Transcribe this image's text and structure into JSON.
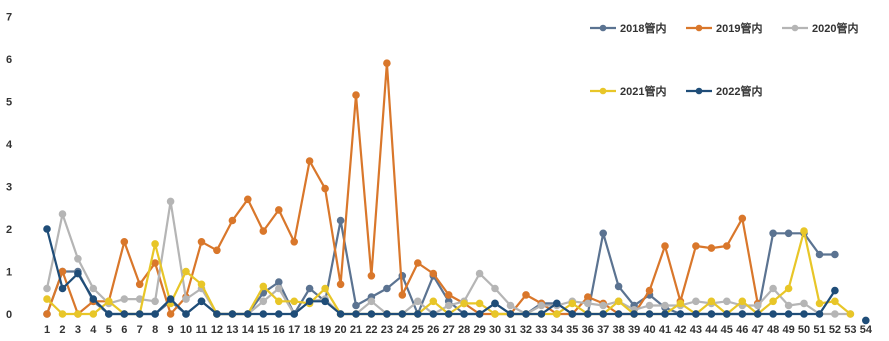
{
  "chart_data": {
    "type": "line",
    "title": "",
    "xlabel": "",
    "ylabel": "",
    "ylim": [
      0,
      7
    ],
    "y_ticks": [
      "0",
      "1",
      "2",
      "3",
      "4",
      "5",
      "6",
      "7"
    ],
    "x": [
      1,
      2,
      3,
      4,
      5,
      6,
      7,
      8,
      9,
      10,
      11,
      12,
      13,
      14,
      15,
      16,
      17,
      18,
      19,
      20,
      21,
      22,
      23,
      24,
      25,
      26,
      27,
      28,
      29,
      30,
      31,
      32,
      33,
      34,
      35,
      36,
      37,
      38,
      39,
      40,
      41,
      42,
      43,
      44,
      45,
      46,
      47,
      48,
      49,
      50,
      51,
      52,
      53,
      54
    ],
    "x_tick_labels": [
      "1",
      "2",
      "3",
      "4",
      "5",
      "6",
      "7",
      "8",
      "9",
      "10",
      "11",
      "12",
      "13",
      "14",
      "15",
      "16",
      "17",
      "18",
      "19",
      "20",
      "21",
      "22",
      "23",
      "24",
      "25",
      "26",
      "27",
      "28",
      "29",
      "30",
      "31",
      "32",
      "33",
      "34",
      "35",
      "36",
      "37",
      "38",
      "39",
      "40",
      "41",
      "42",
      "43",
      "44",
      "45",
      "46",
      "47",
      "48",
      "49",
      "50",
      "51",
      "52",
      "53",
      "54"
    ],
    "grid": false,
    "legend_position": "top-right",
    "series": [
      {
        "name": "2018管内",
        "color": "#5b7391",
        "values": [
          0,
          1,
          1,
          0.3,
          0,
          0,
          0,
          0,
          0.3,
          0,
          0.3,
          0,
          0,
          0,
          0.5,
          0.75,
          0,
          0.6,
          0.3,
          2.2,
          0.2,
          0.4,
          0.6,
          0.9,
          0,
          0.9,
          0.3,
          0,
          0,
          0.25,
          0,
          0,
          0.25,
          0.25,
          0,
          0,
          1.9,
          0.65,
          0.2,
          0.45,
          0.15,
          0,
          0,
          0,
          0,
          0,
          0,
          1.9,
          1.9,
          1.9,
          1.4,
          1.4,
          null,
          null
        ]
      },
      {
        "name": "2019管内",
        "color": "#d9772b",
        "values": [
          0,
          1,
          0,
          0.3,
          0.3,
          1.7,
          0.7,
          1.2,
          0,
          0.4,
          1.7,
          1.5,
          2.2,
          2.7,
          1.95,
          2.45,
          1.7,
          3.6,
          2.95,
          0.7,
          5.15,
          0.9,
          5.9,
          0.45,
          1.2,
          0.95,
          0.45,
          0.25,
          0,
          0,
          0,
          0.45,
          0.25,
          0,
          0,
          0.4,
          0.25,
          0,
          0,
          0.55,
          1.6,
          0.3,
          1.6,
          1.55,
          1.6,
          2.25,
          0.25,
          null,
          null,
          null,
          null,
          null,
          null,
          null
        ]
      },
      {
        "name": "2020管内",
        "color": "#b5b5b5",
        "values": [
          0.6,
          2.35,
          1.3,
          0.6,
          0.25,
          0.35,
          0.35,
          0.3,
          2.65,
          0.35,
          0.6,
          0,
          0,
          0,
          0.3,
          0.6,
          0,
          0.3,
          0.35,
          0,
          0,
          0.3,
          0,
          0,
          0.3,
          0,
          0.2,
          0.3,
          0.95,
          0.6,
          0.2,
          0,
          0.2,
          0.2,
          0.3,
          0.25,
          0.2,
          0.3,
          0.1,
          0.2,
          0.2,
          0.2,
          0.3,
          0.25,
          0.3,
          0.2,
          0.2,
          0.6,
          0.2,
          0.25,
          0,
          0,
          0,
          null
        ]
      },
      {
        "name": "2021管内",
        "color": "#e8c628",
        "values": [
          0.35,
          0,
          0,
          0,
          0.3,
          0,
          0,
          1.65,
          0.25,
          1,
          0.7,
          0,
          0,
          0,
          0.65,
          0.3,
          0.3,
          0.25,
          0.6,
          0,
          0,
          0,
          0,
          0,
          0,
          0.3,
          0,
          0.25,
          0.25,
          0,
          0,
          0,
          0,
          0,
          0.25,
          0,
          0,
          0.3,
          0,
          0,
          0,
          0.25,
          0,
          0.3,
          0,
          0.3,
          0,
          0.3,
          0.6,
          1.95,
          0.25,
          0.3,
          0,
          null
        ]
      },
      {
        "name": "2022管内",
        "color": "#1f4d78",
        "values": [
          2,
          0.6,
          0.95,
          0.35,
          0,
          0,
          0,
          0,
          0.35,
          0,
          0.3,
          0,
          0,
          0,
          0,
          0,
          0,
          0.3,
          0.3,
          0,
          0,
          0,
          0,
          0,
          0,
          0,
          0,
          0,
          0,
          0.25,
          0,
          0,
          0,
          0.25,
          0,
          0,
          0,
          0,
          0,
          0,
          0,
          0,
          0,
          0,
          0,
          0,
          0,
          0,
          0,
          0,
          0,
          0.55,
          null,
          -0.15
        ]
      }
    ]
  }
}
